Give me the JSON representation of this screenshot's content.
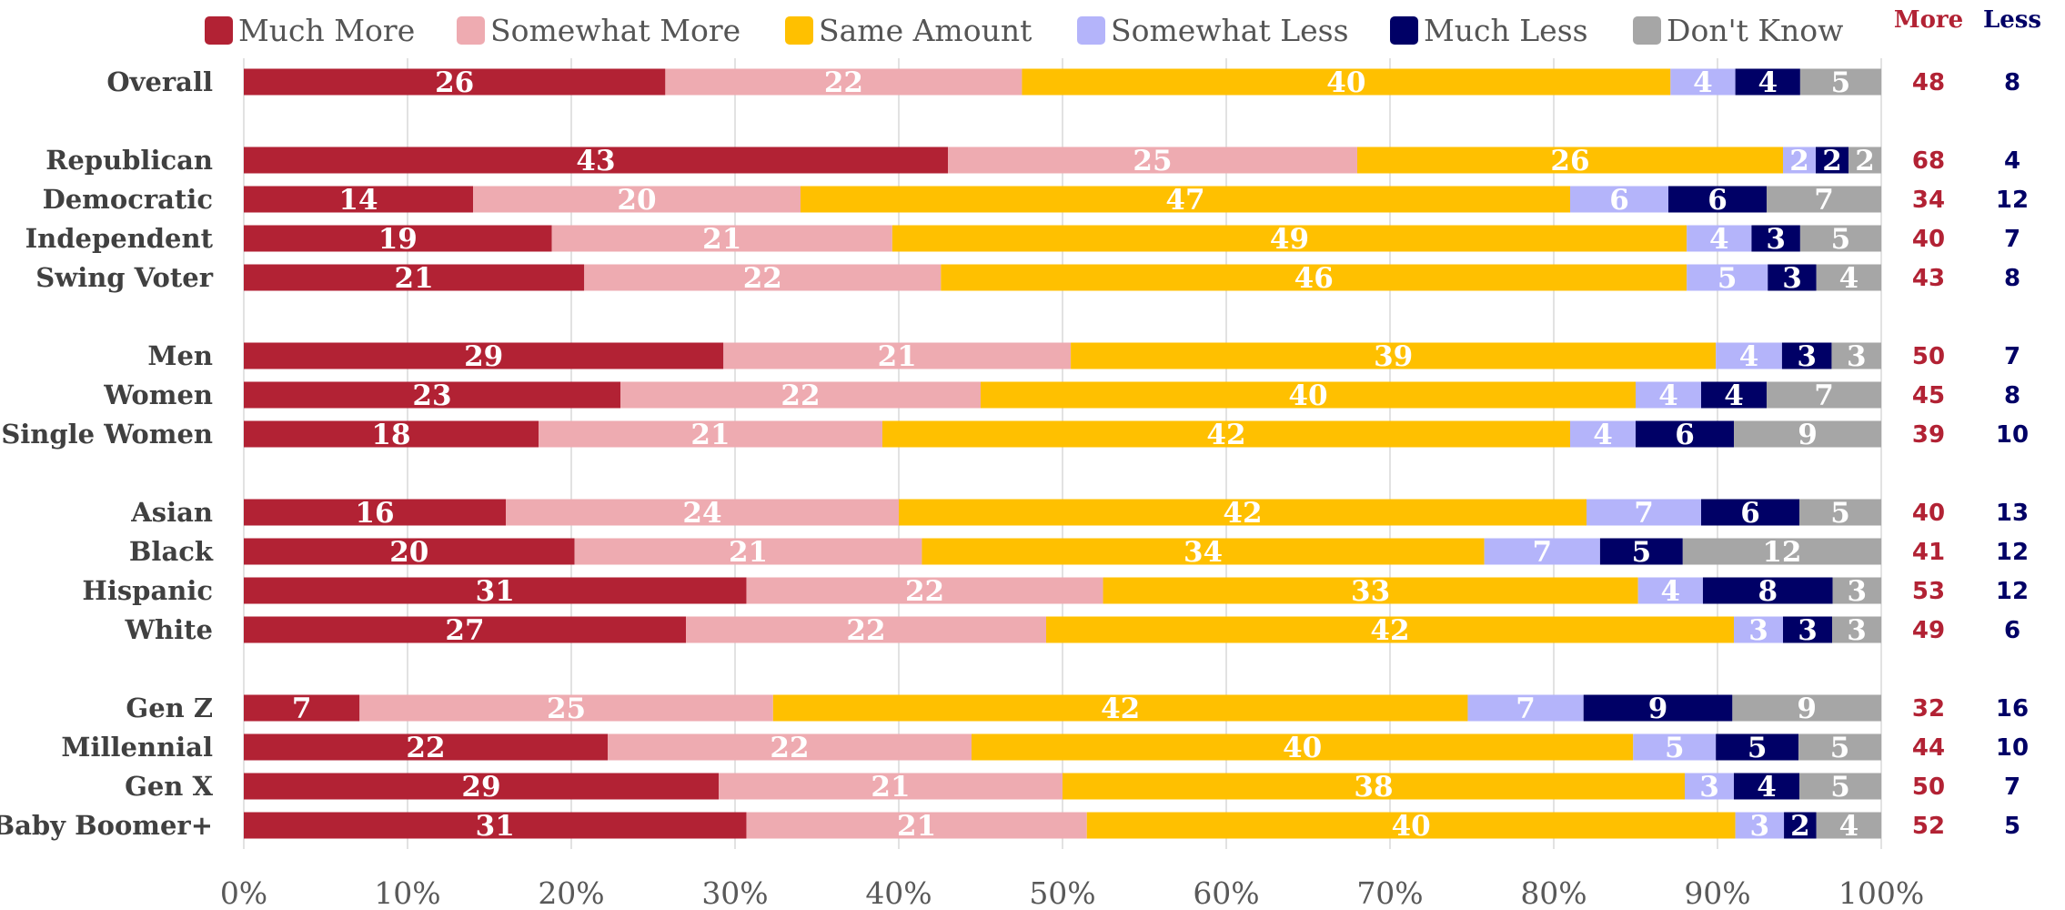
{
  "chart_data": {
    "type": "bar",
    "orientation": "horizontal",
    "stacked": true,
    "percent_scale": true,
    "xlim": [
      0,
      100
    ],
    "x_ticks": [
      "0%",
      "10%",
      "20%",
      "30%",
      "40%",
      "50%",
      "60%",
      "70%",
      "80%",
      "90%",
      "100%"
    ],
    "grid": "vertical",
    "legend_position": "top",
    "categories": [
      "Overall",
      "Republican",
      "Democratic",
      "Independent",
      "Swing Voter",
      "Men",
      "Women",
      "Single Women",
      "Asian",
      "Black",
      "Hispanic",
      "White",
      "Gen Z",
      "Millennial",
      "Gen X",
      "Baby Boomer+"
    ],
    "groups": [
      [
        0
      ],
      [
        1,
        2,
        3,
        4
      ],
      [
        5,
        6,
        7
      ],
      [
        8,
        9,
        10,
        11
      ],
      [
        12,
        13,
        14,
        15
      ]
    ],
    "series": [
      {
        "name": "Much More",
        "color": "#B22234",
        "values": [
          26,
          43,
          14,
          19,
          21,
          29,
          23,
          18,
          16,
          20,
          31,
          27,
          7,
          22,
          29,
          31
        ]
      },
      {
        "name": "Somewhat More",
        "color": "#EEABB1",
        "values": [
          22,
          25,
          20,
          21,
          22,
          21,
          22,
          21,
          24,
          21,
          22,
          22,
          25,
          22,
          21,
          21
        ]
      },
      {
        "name": "Same Amount",
        "color": "#FFC000",
        "values": [
          40,
          26,
          47,
          49,
          46,
          39,
          40,
          42,
          42,
          34,
          33,
          42,
          42,
          40,
          38,
          40
        ]
      },
      {
        "name": "Somewhat Less",
        "color": "#B4B4FA",
        "values": [
          4,
          2,
          6,
          4,
          5,
          4,
          4,
          4,
          7,
          7,
          4,
          3,
          7,
          5,
          3,
          3
        ]
      },
      {
        "name": "Much Less",
        "color": "#000066",
        "values": [
          4,
          2,
          6,
          3,
          3,
          3,
          4,
          6,
          6,
          5,
          8,
          3,
          9,
          5,
          4,
          2
        ]
      },
      {
        "name": "Don't Know",
        "color": "#A6A6A6",
        "values": [
          5,
          2,
          7,
          5,
          4,
          3,
          7,
          9,
          5,
          12,
          3,
          3,
          9,
          5,
          5,
          4
        ]
      }
    ],
    "side_columns": [
      {
        "header": "More",
        "color": "#B22234",
        "values": [
          48,
          68,
          34,
          40,
          43,
          50,
          45,
          39,
          40,
          41,
          53,
          49,
          32,
          44,
          50,
          52
        ]
      },
      {
        "header": "Less",
        "color": "#000066",
        "values": [
          8,
          4,
          12,
          7,
          8,
          7,
          8,
          10,
          13,
          12,
          12,
          6,
          16,
          10,
          7,
          5
        ]
      }
    ]
  }
}
